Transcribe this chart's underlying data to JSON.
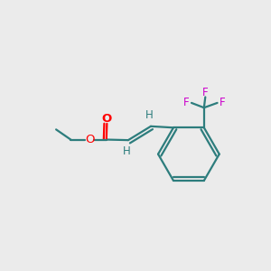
{
  "background_color": "#ebebeb",
  "bond_color": "#2d7d7d",
  "bond_width": 1.6,
  "o_color": "#ff0000",
  "f_color": "#cc00cc",
  "h_color": "#2d7d7d",
  "figsize": [
    3.0,
    3.0
  ],
  "dpi": 100,
  "xlim": [
    0,
    10
  ],
  "ylim": [
    0,
    10
  ]
}
